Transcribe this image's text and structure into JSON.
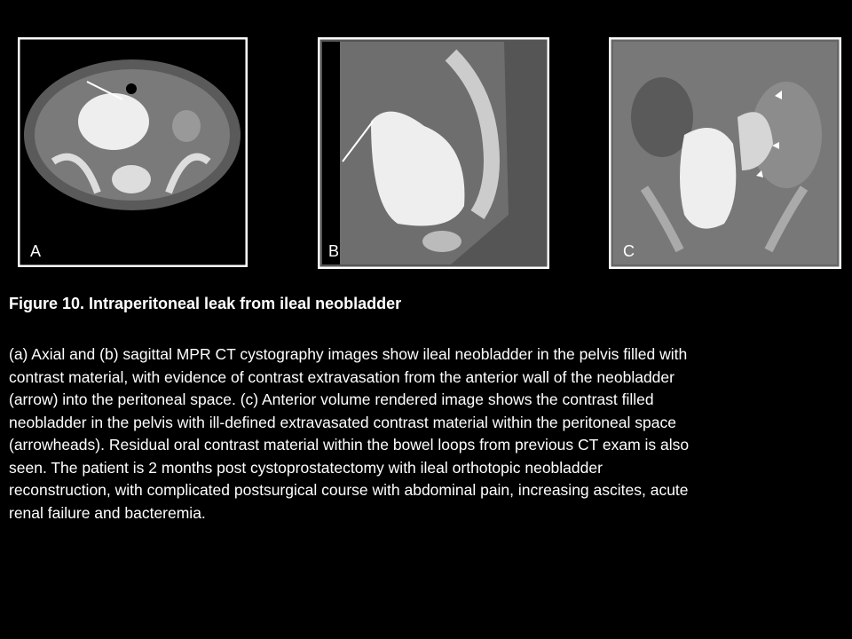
{
  "figure": {
    "panels": [
      {
        "label": "A"
      },
      {
        "label": "B"
      },
      {
        "label": "C"
      }
    ],
    "caption": {
      "title": "Figure 10. Intraperitoneal leak from ileal neobladder",
      "lines": [
        "(a) Axial and (b) sagittal MPR CT cystography images show ileal neobladder in the pelvis filled with",
        "contrast material, with evidence of contrast extravasation from the anterior wall of the neobladder",
        "(arrow) into the peritoneal space. (c) Anterior volume rendered image shows the contrast filled",
        "neobladder in the pelvis with ill-defined extravasated contrast material within the peritoneal space",
        "(arrowheads). Residual oral contrast material within the bowel loops from previous CT exam is also",
        "seen. The patient is 2 months post cystoprostatectomy with ileal orthotopic neobladder",
        "reconstruction, with complicated postsurgical course with abdominal pain, increasing ascites, acute",
        "renal failure and bacteremia."
      ]
    }
  }
}
